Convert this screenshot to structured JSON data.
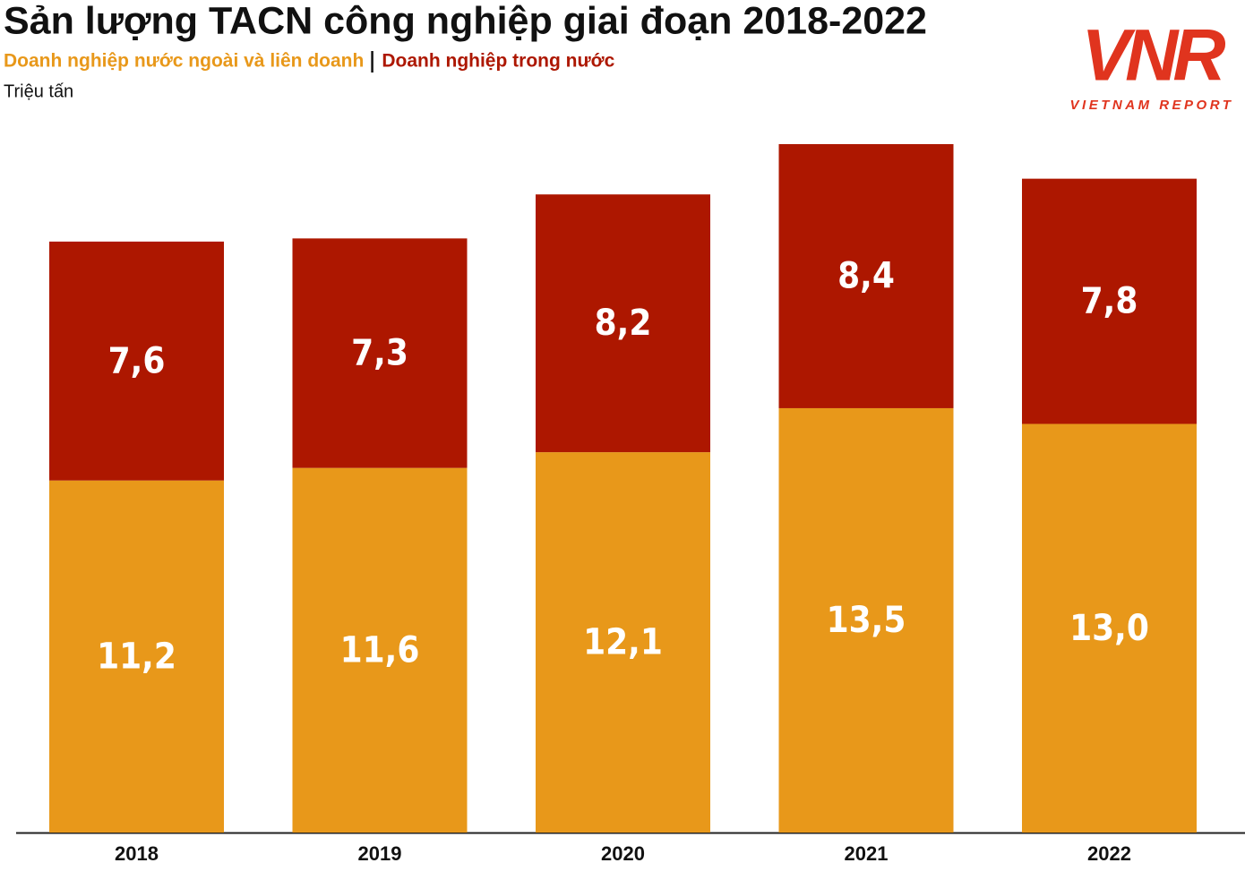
{
  "chart_data": {
    "type": "stacked_bar",
    "title": "Sản lượng TACN công nghiệp giai đoạn 2018-2022",
    "y_label": "Triệu tấn",
    "categories": [
      "2018",
      "2019",
      "2020",
      "2021",
      "2022"
    ],
    "series": [
      {
        "name": "Doanh nghiệp nước ngoài và liên doanh",
        "color": "#e8981a",
        "values": [
          11.2,
          11.6,
          12.1,
          13.5,
          13.0
        ],
        "value_labels": [
          "11,2",
          "11,6",
          "12,1",
          "13,5",
          "13,0"
        ]
      },
      {
        "name": "Doanh nghiệp trong nước",
        "color": "#ad1700",
        "values": [
          7.6,
          7.3,
          8.2,
          8.4,
          7.8
        ],
        "value_labels": [
          "7,6",
          "7,3",
          "8,2",
          "8,4",
          "7,8"
        ]
      }
    ]
  },
  "logo": {
    "mark": "VNR",
    "text": "VIETNAM REPORT"
  }
}
